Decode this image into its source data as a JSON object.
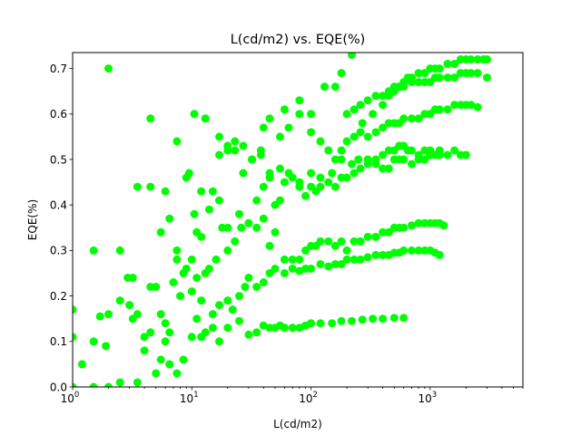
{
  "chart_data": {
    "type": "scatter",
    "title": "L(cd/m2) vs. EQE(%)",
    "xlabel": "L(cd/m2)",
    "ylabel": "EQE(%)",
    "xscale": "log",
    "xlim": [
      1,
      6000
    ],
    "ylim": [
      0,
      0.735
    ],
    "x_ticks": [
      {
        "value": 1,
        "base": "10",
        "exp": "0"
      },
      {
        "value": 10,
        "base": "10",
        "exp": "1"
      },
      {
        "value": 100,
        "base": "10",
        "exp": "2"
      },
      {
        "value": 1000,
        "base": "10",
        "exp": "3"
      }
    ],
    "y_ticks": [
      {
        "value": 0.0,
        "label": "0.0"
      },
      {
        "value": 0.1,
        "label": "0.1"
      },
      {
        "value": 0.2,
        "label": "0.2"
      },
      {
        "value": 0.3,
        "label": "0.3"
      },
      {
        "value": 0.4,
        "label": "0.4"
      },
      {
        "value": 0.5,
        "label": "0.5"
      },
      {
        "value": 0.6,
        "label": "0.6"
      },
      {
        "value": 0.7,
        "label": "0.7"
      }
    ],
    "grid": false,
    "marker_color": "#00ff00",
    "series": [
      {
        "x": [
          1.0,
          1.2,
          1.5,
          1.7,
          1.9,
          2.0,
          2.5,
          2.9,
          3.2,
          3.5,
          4.0,
          4.5,
          5.0,
          5.5,
          6.0,
          6.5,
          7.5,
          8.5,
          10,
          11,
          12,
          13,
          15,
          17,
          20,
          25,
          30,
          35,
          40,
          45,
          50,
          55,
          60,
          70,
          80,
          90,
          100,
          120,
          150,
          180,
          220,
          270,
          330,
          400,
          500,
          600
        ],
        "y": [
          0.17,
          0.05,
          0.1,
          0.155,
          0.09,
          0.16,
          0.01,
          0.24,
          0.15,
          0.01,
          0.08,
          0.12,
          0.03,
          0.06,
          0.14,
          0.05,
          0.03,
          0.06,
          0.11,
          0.15,
          0.11,
          0.12,
          0.13,
          0.1,
          0.13,
          0.145,
          0.115,
          0.12,
          0.135,
          0.13,
          0.13,
          0.135,
          0.13,
          0.13,
          0.13,
          0.135,
          0.14,
          0.14,
          0.14,
          0.145,
          0.145,
          0.148,
          0.15,
          0.15,
          0.152,
          0.152
        ]
      },
      {
        "x": [
          1.0,
          1.5,
          2.0,
          2.5,
          3.0,
          3.5,
          4.0,
          5.0,
          6.0,
          7.0,
          8.0,
          9.0,
          10,
          11,
          12,
          13,
          15,
          17,
          20,
          22,
          25,
          28,
          30,
          35,
          40,
          45,
          50,
          60,
          70,
          80,
          90,
          100,
          120,
          140,
          160,
          180,
          200,
          230,
          260,
          300,
          350,
          400,
          450,
          500,
          550,
          600,
          700,
          800,
          900,
          1000,
          1100,
          1200
        ],
        "y": [
          0.0,
          0.0,
          0.0,
          0.19,
          0.18,
          0.16,
          0.11,
          0.22,
          0.1,
          0.23,
          0.2,
          0.26,
          0.21,
          0.24,
          0.19,
          0.25,
          0.16,
          0.18,
          0.19,
          0.17,
          0.2,
          0.22,
          0.24,
          0.22,
          0.23,
          0.25,
          0.26,
          0.25,
          0.26,
          0.255,
          0.26,
          0.26,
          0.27,
          0.265,
          0.27,
          0.27,
          0.28,
          0.28,
          0.28,
          0.285,
          0.29,
          0.29,
          0.29,
          0.295,
          0.295,
          0.3,
          0.3,
          0.3,
          0.3,
          0.3,
          0.295,
          0.29
        ]
      },
      {
        "x": [
          1.0,
          1.5,
          2.5,
          3.2,
          4.5,
          5.5,
          6.5,
          7.5,
          8.5,
          10,
          12,
          14,
          16,
          18,
          20,
          23,
          26,
          30,
          35,
          40,
          45,
          50,
          60,
          70,
          80,
          90,
          100,
          110,
          120,
          140,
          160,
          180,
          200,
          230,
          260,
          300,
          350,
          400,
          450,
          500,
          550,
          600,
          700,
          800,
          900,
          1000,
          1100,
          1200,
          1300
        ],
        "y": [
          0.11,
          0.3,
          0.3,
          0.24,
          0.22,
          0.16,
          0.12,
          0.28,
          0.25,
          0.28,
          0.33,
          0.26,
          0.28,
          0.35,
          0.3,
          0.32,
          0.35,
          0.36,
          0.35,
          0.37,
          0.31,
          0.34,
          0.28,
          0.28,
          0.28,
          0.3,
          0.31,
          0.31,
          0.32,
          0.32,
          0.31,
          0.32,
          0.3,
          0.32,
          0.32,
          0.33,
          0.33,
          0.34,
          0.34,
          0.35,
          0.35,
          0.35,
          0.355,
          0.36,
          0.36,
          0.36,
          0.36,
          0.36,
          0.355
        ]
      },
      {
        "x": [
          3.5,
          4.5,
          5.5,
          6.5,
          7.5,
          9.0,
          10.5,
          12,
          14,
          17,
          20,
          25,
          30,
          35,
          40,
          45,
          50,
          55,
          60,
          70,
          80,
          90,
          100,
          110,
          120,
          140,
          160,
          180,
          200,
          230,
          260,
          300,
          350,
          400,
          450,
          500,
          550,
          600,
          700,
          800,
          900,
          1000,
          1100,
          1200,
          1400,
          1600,
          1800,
          2000
        ],
        "y": [
          0.44,
          0.44,
          0.34,
          0.37,
          0.3,
          0.46,
          0.38,
          0.43,
          0.39,
          0.41,
          0.35,
          0.38,
          0.36,
          0.41,
          0.44,
          0.47,
          0.4,
          0.41,
          0.45,
          0.46,
          0.44,
          0.42,
          0.44,
          0.43,
          0.44,
          0.45,
          0.44,
          0.46,
          0.46,
          0.47,
          0.48,
          0.49,
          0.49,
          0.48,
          0.48,
          0.5,
          0.5,
          0.5,
          0.49,
          0.5,
          0.5,
          0.51,
          0.51,
          0.51,
          0.51,
          0.52,
          0.51,
          0.51
        ]
      },
      {
        "x": [
          4.5,
          6.0,
          7.5,
          9.5,
          11,
          13,
          15,
          17,
          20,
          23,
          27,
          32,
          38,
          45,
          55,
          65,
          80,
          100,
          120,
          150,
          180,
          220,
          250,
          300,
          350,
          400,
          450,
          500,
          550,
          600,
          650,
          700,
          800,
          900,
          1000,
          1100,
          1200
        ],
        "y": [
          0.59,
          0.43,
          0.54,
          0.47,
          0.34,
          0.59,
          0.43,
          0.55,
          0.53,
          0.52,
          0.47,
          0.5,
          0.52,
          0.46,
          0.48,
          0.47,
          0.45,
          0.47,
          0.46,
          0.47,
          0.5,
          0.49,
          0.5,
          0.5,
          0.5,
          0.51,
          0.52,
          0.52,
          0.53,
          0.53,
          0.52,
          0.52,
          0.51,
          0.52,
          0.52,
          0.51,
          0.52
        ]
      },
      {
        "x": [
          10.5,
          13,
          17,
          20,
          23,
          27,
          32,
          38,
          45,
          55,
          65,
          80,
          100,
          120,
          140,
          160,
          180,
          200,
          230,
          260,
          300,
          350,
          400,
          450,
          500,
          550,
          600,
          700,
          800,
          900,
          1000,
          1100,
          1200,
          1400,
          1600,
          1800,
          2000,
          2200,
          2500
        ],
        "y": [
          0.6,
          0.59,
          0.51,
          0.52,
          0.54,
          0.53,
          0.5,
          0.51,
          0.59,
          0.55,
          0.57,
          0.6,
          0.56,
          0.54,
          0.52,
          0.5,
          0.52,
          0.54,
          0.55,
          0.56,
          0.55,
          0.56,
          0.57,
          0.58,
          0.58,
          0.58,
          0.59,
          0.59,
          0.59,
          0.6,
          0.6,
          0.61,
          0.61,
          0.61,
          0.62,
          0.62,
          0.62,
          0.62,
          0.615
        ]
      },
      {
        "x": [
          2.0,
          40,
          60,
          80,
          100,
          130,
          160,
          200,
          230,
          260,
          300,
          350,
          400,
          450,
          500,
          550,
          600,
          700,
          800,
          900,
          1000,
          1100,
          1200,
          1400,
          1600,
          1800,
          2000,
          2200,
          2500,
          3000
        ],
        "y": [
          0.7,
          0.57,
          0.61,
          0.63,
          0.6,
          0.66,
          0.66,
          0.6,
          0.61,
          0.62,
          0.63,
          0.64,
          0.64,
          0.65,
          0.65,
          0.66,
          0.66,
          0.67,
          0.67,
          0.67,
          0.67,
          0.68,
          0.68,
          0.68,
          0.68,
          0.69,
          0.69,
          0.69,
          0.69,
          0.68
        ]
      },
      {
        "x": [
          180,
          220,
          270,
          330,
          400,
          450,
          500,
          550,
          600,
          650,
          700,
          800,
          900,
          1000,
          1100,
          1200,
          1400,
          1600,
          1800,
          2000,
          2200,
          2500,
          2800,
          3000
        ],
        "y": [
          0.69,
          0.73,
          0.58,
          0.6,
          0.62,
          0.64,
          0.66,
          0.66,
          0.67,
          0.68,
          0.68,
          0.69,
          0.69,
          0.7,
          0.7,
          0.7,
          0.71,
          0.71,
          0.72,
          0.72,
          0.72,
          0.72,
          0.72,
          0.72
        ]
      }
    ]
  }
}
